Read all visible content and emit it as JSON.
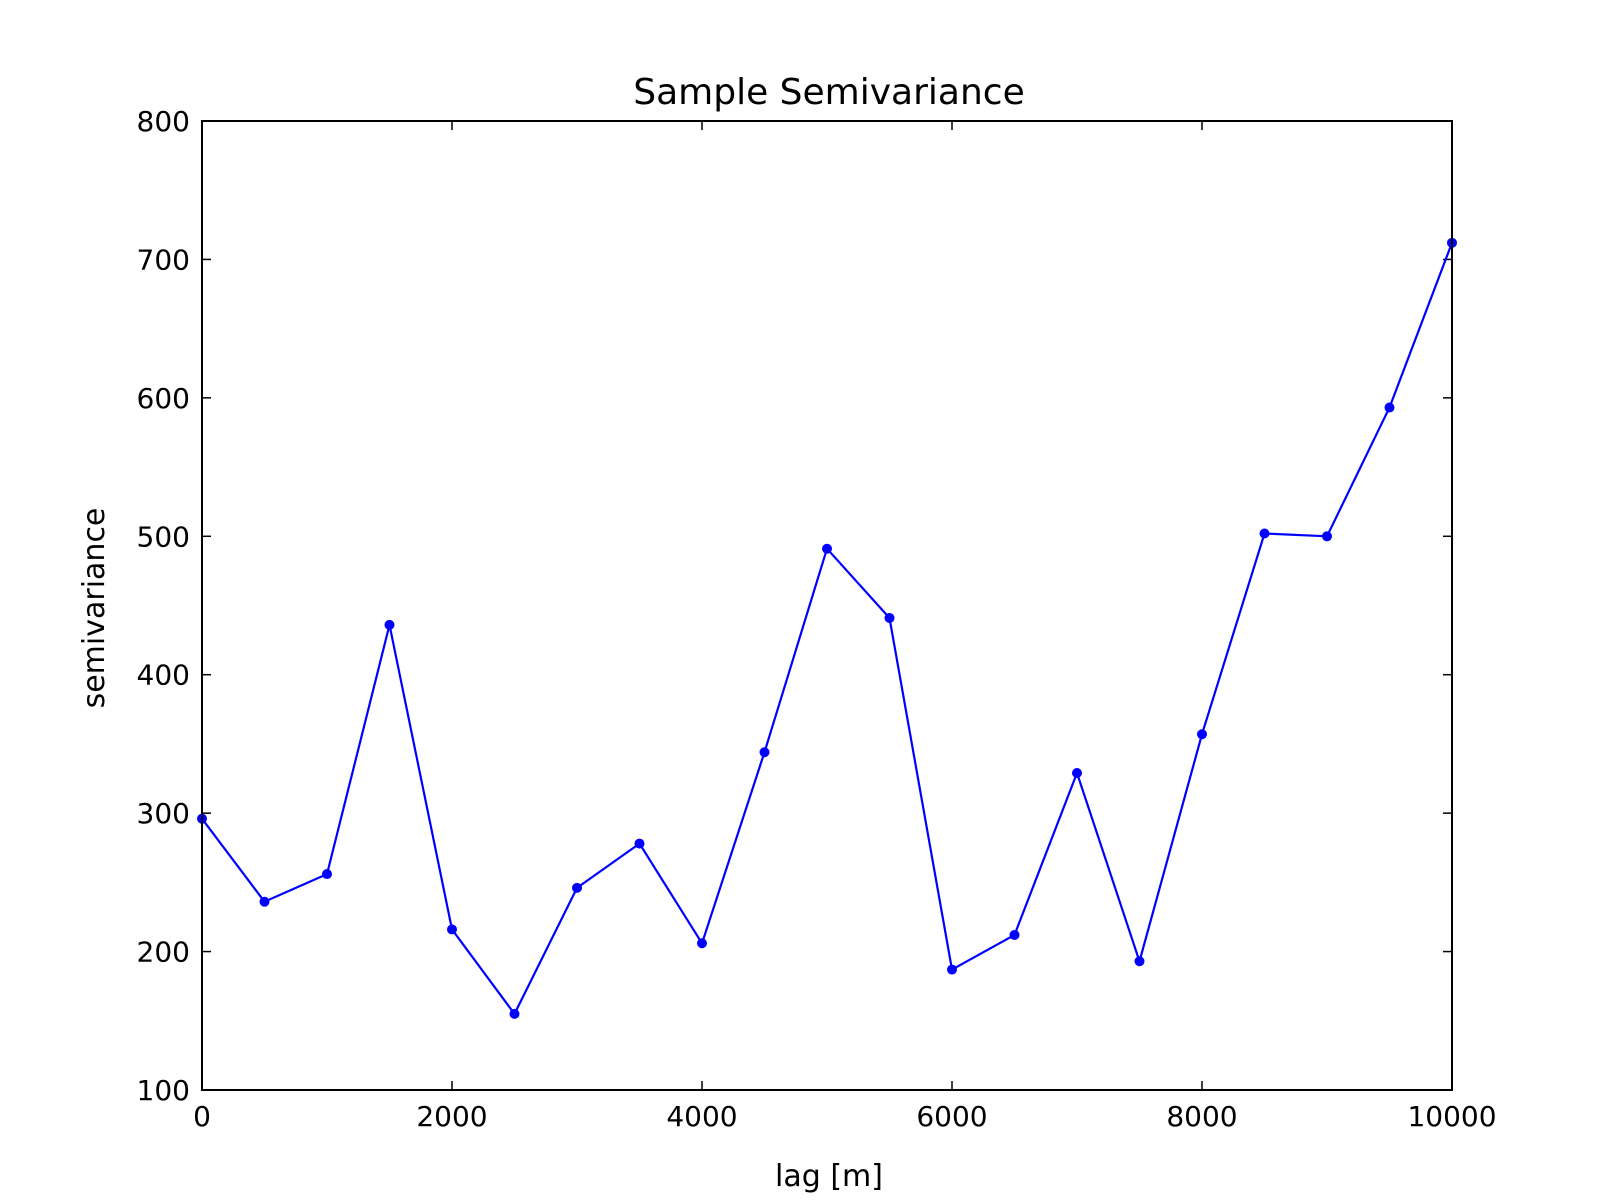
{
  "chart_data": {
    "type": "line",
    "title": "Sample Semivariance",
    "xlabel": "lag [m]",
    "ylabel": "semivariance",
    "xlim": [
      0,
      10000
    ],
    "ylim": [
      100,
      800
    ],
    "x_ticks": [
      0,
      2000,
      4000,
      6000,
      8000,
      10000
    ],
    "y_ticks": [
      100,
      200,
      300,
      400,
      500,
      600,
      700,
      800
    ],
    "x_tick_labels": [
      "0",
      "2000",
      "4000",
      "6000",
      "8000",
      "10000"
    ],
    "y_tick_labels": [
      "100",
      "200",
      "300",
      "400",
      "500",
      "600",
      "700",
      "800"
    ],
    "grid": false,
    "color": "#0000ff",
    "series": [
      {
        "x": [
          0,
          500,
          1000,
          1500,
          2000,
          2500,
          3000,
          3500,
          4000,
          4500,
          5000,
          5500,
          6000,
          6500,
          7000,
          7500,
          8000,
          8500,
          9000,
          9500,
          10000
        ],
        "values": [
          296,
          236,
          256,
          436,
          216,
          155,
          246,
          278,
          206,
          344,
          491,
          441,
          187,
          212,
          329,
          193,
          357,
          502,
          500,
          593,
          712
        ]
      }
    ]
  }
}
